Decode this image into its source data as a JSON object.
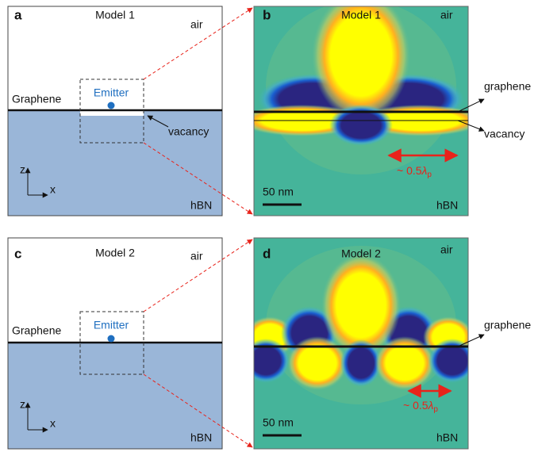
{
  "panels": [
    {
      "label": "a",
      "title": "Model 1",
      "medium_top": "air",
      "medium_bottom": "hBN",
      "interface": "Graphene",
      "emitter": "Emitter",
      "defect": "vacancy",
      "axis_z": "z",
      "axis_x": "x"
    },
    {
      "label": "b",
      "title": "Model 1",
      "medium_top": "air",
      "medium_bottom": "hBN",
      "interface": "graphene",
      "defect": "vacancy",
      "scale_bar": "50 nm",
      "wavelength": {
        "approx": "~ 0.5",
        "symbol": "λ",
        "subscript": "p"
      }
    },
    {
      "label": "c",
      "title": "Model 2",
      "medium_top": "air",
      "medium_bottom": "hBN",
      "interface": "Graphene",
      "emitter": "Emitter",
      "axis_z": "z",
      "axis_x": "x"
    },
    {
      "label": "d",
      "title": "Model 2",
      "medium_top": "air",
      "medium_bottom": "hBN",
      "interface": "graphene",
      "scale_bar": "50 nm",
      "wavelength": {
        "approx": "~ 0.5",
        "symbol": "λ",
        "subscript": "p"
      }
    }
  ]
}
